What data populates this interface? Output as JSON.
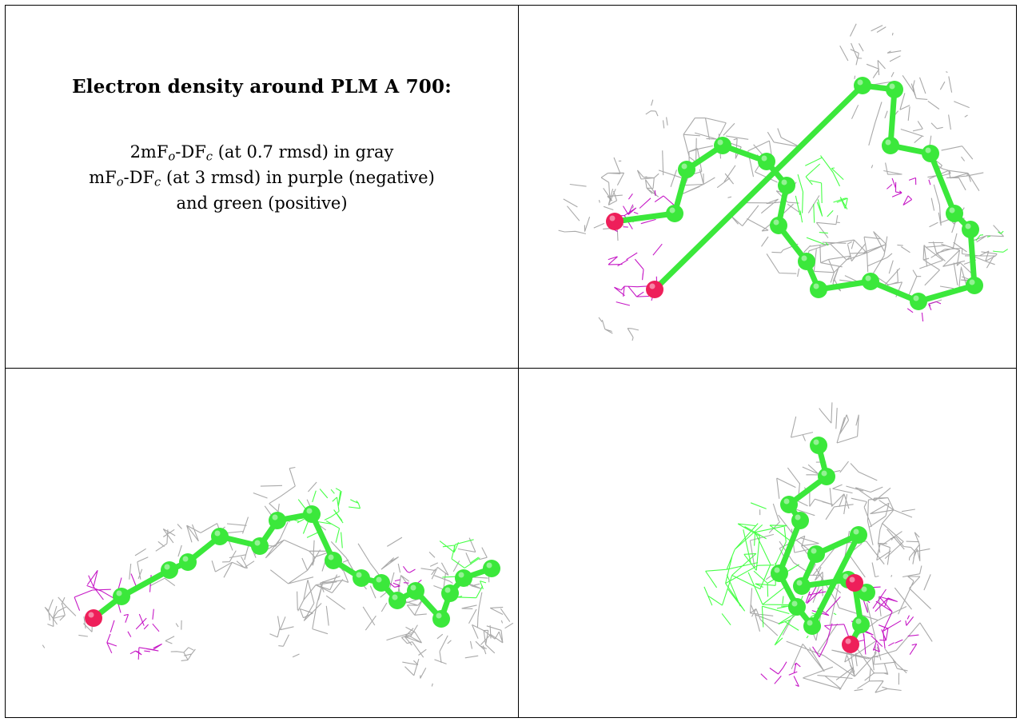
{
  "title": "Electron density around PLM A 700:",
  "description": {
    "line1": {
      "prefix": "2mF",
      "sub1": "o",
      "mid": "-DF",
      "sub2": "c",
      "suffix": " (at 0.7 rmsd) in gray"
    },
    "line2": {
      "prefix": "mF",
      "sub1": "o",
      "mid": "-DF",
      "sub2": "c",
      "suffix": " (at 3 rmsd) in purple (negative)"
    },
    "line3": "and green (positive)"
  },
  "colors": {
    "mesh_2fofc": "#9a9a9a",
    "mesh_negative": "#c000c0",
    "mesh_positive": "#33ff33",
    "carbon_atom": "#3be83b",
    "oxygen_atom": "#ee1f5a",
    "border": "#000000"
  },
  "panels": [
    {
      "name": "view-1",
      "content": "density-map"
    },
    {
      "name": "view-2",
      "content": "density-map"
    },
    {
      "name": "view-3",
      "content": "density-map"
    }
  ]
}
